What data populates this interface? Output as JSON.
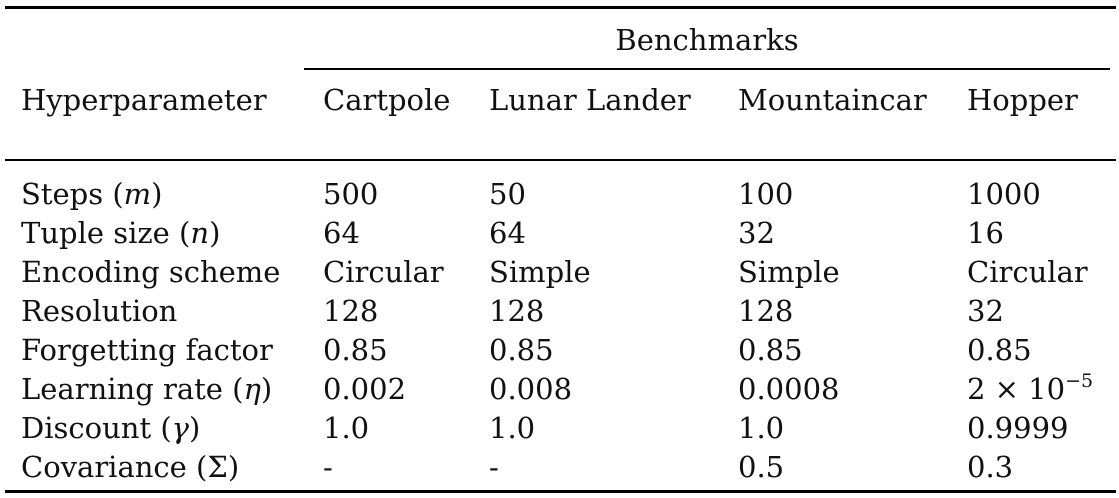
{
  "table": {
    "group_header": "Benchmarks",
    "columns": [
      "Hyperparameter",
      "Cartpole",
      "Lunar Lander",
      "Mountaincar",
      "Hopper"
    ],
    "rows": [
      {
        "label_text": "Steps (",
        "label_sym": "m",
        "label_close": ")",
        "values": [
          "500",
          "50",
          "100",
          "1000"
        ]
      },
      {
        "label_text": "Tuple size (",
        "label_sym": "n",
        "label_close": ")",
        "values": [
          "64",
          "64",
          "32",
          "16"
        ]
      },
      {
        "label_text": "Encoding scheme",
        "label_sym": "",
        "label_close": "",
        "values": [
          "Circular",
          "Simple",
          "Simple",
          "Circular"
        ]
      },
      {
        "label_text": "Resolution",
        "label_sym": "",
        "label_close": "",
        "values": [
          "128",
          "128",
          "128",
          "32"
        ]
      },
      {
        "label_text": "Forgetting factor",
        "label_sym": "",
        "label_close": "",
        "values": [
          "0.85",
          "0.85",
          "0.85",
          "0.85"
        ]
      },
      {
        "label_text": "Learning rate (",
        "label_sym": "η",
        "label_close": ")",
        "values": [
          "0.002",
          "0.008",
          "0.0008",
          "2 × 10"
        ],
        "hopper_exponent": "−5"
      },
      {
        "label_text": "Discount (",
        "label_sym": "γ",
        "label_close": ")",
        "values": [
          "1.0",
          "1.0",
          "1.0",
          "0.9999"
        ]
      },
      {
        "label_text": "Covariance (Σ)",
        "label_sym": "",
        "label_close": "",
        "values": [
          "-",
          "-",
          "0.5",
          "0.3"
        ]
      }
    ]
  }
}
